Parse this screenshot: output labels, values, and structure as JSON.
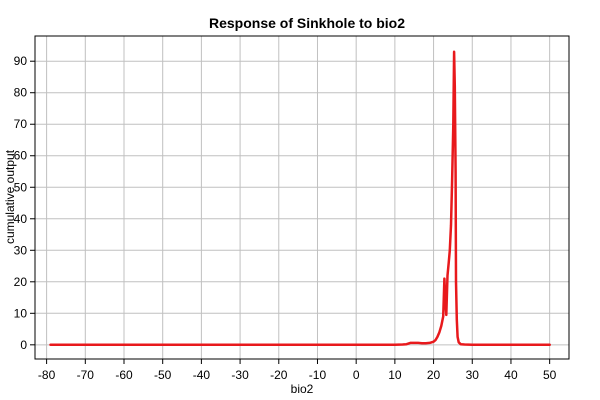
{
  "chart_data": {
    "type": "line",
    "title": "Response of Sinkhole to bio2",
    "xlabel": "bio2",
    "ylabel": "cumulative output",
    "xlim": [
      -83,
      55
    ],
    "ylim": [
      -4.5,
      98
    ],
    "x_ticks": [
      -80,
      -70,
      -60,
      -50,
      -40,
      -30,
      -20,
      -10,
      0,
      10,
      20,
      30,
      40,
      50
    ],
    "y_ticks": [
      0,
      10,
      20,
      30,
      40,
      50,
      60,
      70,
      80,
      90
    ],
    "grid": true,
    "legend": "none",
    "series": [
      {
        "color": "#e8191c",
        "x": [
          -79,
          -70,
          -60,
          -50,
          -40,
          -30,
          -20,
          -10,
          0,
          10,
          12,
          13,
          14,
          15,
          16,
          17,
          18,
          19,
          20,
          20.5,
          21,
          21.5,
          22,
          22.5,
          22.8,
          23,
          23.3,
          23.6,
          23.9,
          24.2,
          24.5,
          24.8,
          25.1,
          25.3,
          25.5,
          25.7,
          25.8,
          26,
          26.2,
          26.5,
          27,
          28,
          30,
          35,
          40,
          45,
          50
        ],
        "y": [
          0,
          0,
          0,
          0,
          0,
          0,
          0,
          0,
          0,
          0,
          0.1,
          0.2,
          0.6,
          0.6,
          0.6,
          0.5,
          0.5,
          0.6,
          1,
          1.5,
          2.5,
          4,
          6,
          9,
          21,
          15,
          9.5,
          22,
          26,
          30,
          38,
          52,
          70,
          93,
          82,
          55,
          20,
          8,
          2.5,
          0.8,
          0.2,
          0.1,
          0,
          0,
          0,
          0,
          0
        ]
      }
    ]
  }
}
